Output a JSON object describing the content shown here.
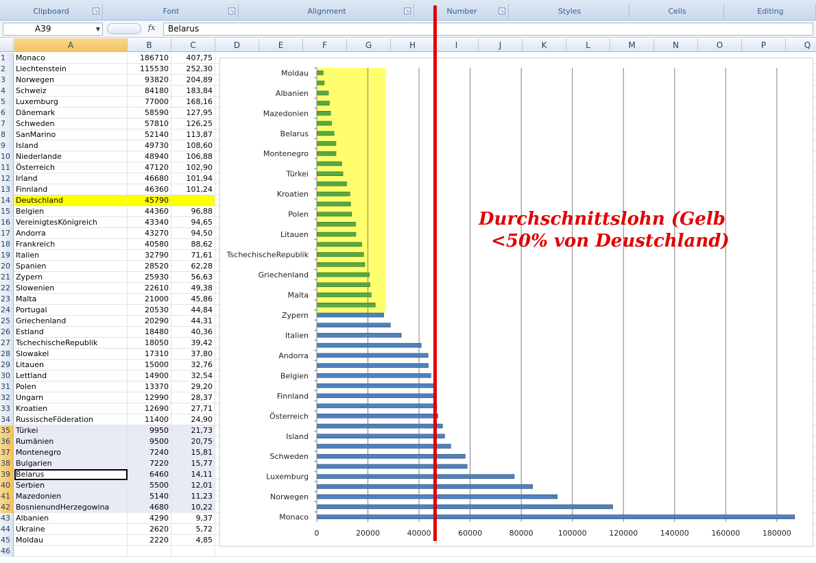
{
  "ribbon": {
    "groups": [
      "Clipboard",
      "Font",
      "Alignment",
      "Number",
      "Styles",
      "Cells",
      "Editing"
    ]
  },
  "formula_bar": {
    "name_box": "A39",
    "fx": "fx",
    "formula": "Belarus"
  },
  "columns": [
    "A",
    "B",
    "C",
    "D",
    "E",
    "F",
    "G",
    "H",
    "I",
    "J",
    "K",
    "L",
    "M",
    "N",
    "O",
    "P",
    "Q"
  ],
  "rows": [
    {
      "n": "1",
      "a": "Monaco",
      "b": "186710",
      "c": "407,75"
    },
    {
      "n": "2",
      "a": "Liechtenstein",
      "b": "115530",
      "c": "252,30"
    },
    {
      "n": "3",
      "a": "Norwegen",
      "b": "93820",
      "c": "204,89"
    },
    {
      "n": "4",
      "a": "Schweiz",
      "b": "84180",
      "c": "183,84"
    },
    {
      "n": "5",
      "a": "Luxemburg",
      "b": "77000",
      "c": "168,16"
    },
    {
      "n": "6",
      "a": "Dänemark",
      "b": "58590",
      "c": "127,95"
    },
    {
      "n": "7",
      "a": "Schweden",
      "b": "57810",
      "c": "126,25"
    },
    {
      "n": "8",
      "a": "SanMarino",
      "b": "52140",
      "c": "113,87"
    },
    {
      "n": "9",
      "a": "Island",
      "b": "49730",
      "c": "108,60"
    },
    {
      "n": "10",
      "a": "Niederlande",
      "b": "48940",
      "c": "106,88"
    },
    {
      "n": "11",
      "a": "Österreich",
      "b": "47120",
      "c": "102,90"
    },
    {
      "n": "12",
      "a": "Irland",
      "b": "46680",
      "c": "101,94"
    },
    {
      "n": "13",
      "a": "Finnland",
      "b": "46360",
      "c": "101,24"
    },
    {
      "n": "14",
      "a": "Deutschland",
      "b": "45790",
      "c": ""
    },
    {
      "n": "15",
      "a": "Belgien",
      "b": "44360",
      "c": "96,88"
    },
    {
      "n": "16",
      "a": "VereinigtesKönigreich",
      "b": "43340",
      "c": "94,65"
    },
    {
      "n": "17",
      "a": "Andorra",
      "b": "43270",
      "c": "94,50"
    },
    {
      "n": "18",
      "a": "Frankreich",
      "b": "40580",
      "c": "88,62"
    },
    {
      "n": "19",
      "a": "Italien",
      "b": "32790",
      "c": "71,61"
    },
    {
      "n": "20",
      "a": "Spanien",
      "b": "28520",
      "c": "62,28"
    },
    {
      "n": "21",
      "a": "Zypern",
      "b": "25930",
      "c": "56,63"
    },
    {
      "n": "22",
      "a": "Slowenien",
      "b": "22610",
      "c": "49,38"
    },
    {
      "n": "23",
      "a": "Malta",
      "b": "21000",
      "c": "45,86"
    },
    {
      "n": "24",
      "a": "Portugal",
      "b": "20530",
      "c": "44,84"
    },
    {
      "n": "25",
      "a": "Griechenland",
      "b": "20290",
      "c": "44,31"
    },
    {
      "n": "26",
      "a": "Estland",
      "b": "18480",
      "c": "40,36"
    },
    {
      "n": "27",
      "a": "TschechischeRepublik",
      "b": "18050",
      "c": "39,42"
    },
    {
      "n": "28",
      "a": "Slowakei",
      "b": "17310",
      "c": "37,80"
    },
    {
      "n": "29",
      "a": "Litauen",
      "b": "15000",
      "c": "32,76"
    },
    {
      "n": "30",
      "a": "Lettland",
      "b": "14900",
      "c": "32,54"
    },
    {
      "n": "31",
      "a": "Polen",
      "b": "13370",
      "c": "29,20"
    },
    {
      "n": "32",
      "a": "Ungarn",
      "b": "12990",
      "c": "28,37"
    },
    {
      "n": "33",
      "a": "Kroatien",
      "b": "12690",
      "c": "27,71"
    },
    {
      "n": "34",
      "a": "RussischeFöderation",
      "b": "11400",
      "c": "24,90"
    },
    {
      "n": "35",
      "a": "Türkei",
      "b": "9950",
      "c": "21,73"
    },
    {
      "n": "36",
      "a": "Rumänien",
      "b": "9500",
      "c": "20,75"
    },
    {
      "n": "37",
      "a": "Montenegro",
      "b": "7240",
      "c": "15,81"
    },
    {
      "n": "38",
      "a": "Bulgarien",
      "b": "7220",
      "c": "15,77"
    },
    {
      "n": "39",
      "a": "Belarus",
      "b": "6460",
      "c": "14,11"
    },
    {
      "n": "40",
      "a": "Serbien",
      "b": "5500",
      "c": "12,01"
    },
    {
      "n": "41",
      "a": "Mazedonien",
      "b": "5140",
      "c": "11,23"
    },
    {
      "n": "42",
      "a": "BosnienundHerzegowina",
      "b": "4680",
      "c": "10,22"
    },
    {
      "n": "43",
      "a": "Albanien",
      "b": "4290",
      "c": "9,37"
    },
    {
      "n": "44",
      "a": "Ukraine",
      "b": "2620",
      "c": "5,72"
    },
    {
      "n": "45",
      "a": "Moldau",
      "b": "2220",
      "c": "4,85"
    },
    {
      "n": "46",
      "a": "",
      "b": "",
      "c": ""
    }
  ],
  "annotation": "Durchschnittslohn (Gelb\n  <50% von Deustchland)",
  "colors": {
    "green_bar": "#5aa845",
    "blue_bar": "#4f81bd",
    "highlight": "#ffff00",
    "red_line": "#e00000"
  },
  "chart_data": {
    "type": "bar",
    "orientation": "horizontal",
    "categories": [
      "Moldau",
      "Ukraine",
      "Albanien",
      "BosnienundHerzegowina",
      "Mazedonien",
      "Serbien",
      "Belarus",
      "Bulgarien",
      "Montenegro",
      "Rumänien",
      "Türkei",
      "RussischeFöderation",
      "Kroatien",
      "Ungarn",
      "Polen",
      "Lettland",
      "Litauen",
      "Slowakei",
      "TschechischeRepublik",
      "Estland",
      "Griechenland",
      "Portugal",
      "Malta",
      "Slowenien",
      "Zypern",
      "Spanien",
      "Italien",
      "Frankreich",
      "Andorra",
      "VereinigtesKönigreich",
      "Belgien",
      "Deutschland",
      "Finnland",
      "Irland",
      "Österreich",
      "Niederlande",
      "Island",
      "SanMarino",
      "Schweden",
      "Dänemark",
      "Luxemburg",
      "Schweiz",
      "Norwegen",
      "Liechtenstein",
      "Monaco"
    ],
    "values": [
      2220,
      2620,
      4290,
      4680,
      5140,
      5500,
      6460,
      7220,
      7240,
      9500,
      9950,
      11400,
      12690,
      12990,
      13370,
      14900,
      15000,
      17310,
      18050,
      18480,
      20290,
      20530,
      21000,
      22610,
      25930,
      28520,
      32790,
      40580,
      43270,
      43340,
      44360,
      45790,
      46360,
      46680,
      47120,
      48940,
      49730,
      52140,
      57810,
      58590,
      77000,
      84180,
      93820,
      115530,
      186710
    ],
    "highlighted_count": 24,
    "tick_labels": [
      "Moldau",
      "Albanien",
      "Mazedonien",
      "Belarus",
      "Montenegro",
      "Türkei",
      "Kroatien",
      "Polen",
      "Litauen",
      "TschechischeRepublik",
      "Griechenland",
      "Malta",
      "Zypern",
      "Italien",
      "Andorra",
      "Belgien",
      "Finnland",
      "Österreich",
      "Island",
      "Schweden",
      "Luxemburg",
      "Norwegen",
      "Monaco"
    ],
    "x_ticks": [
      "0",
      "20000",
      "40000",
      "60000",
      "80000",
      "100000",
      "120000",
      "140000",
      "160000",
      "180000"
    ],
    "xlim": [
      0,
      190000
    ],
    "grid": true
  }
}
